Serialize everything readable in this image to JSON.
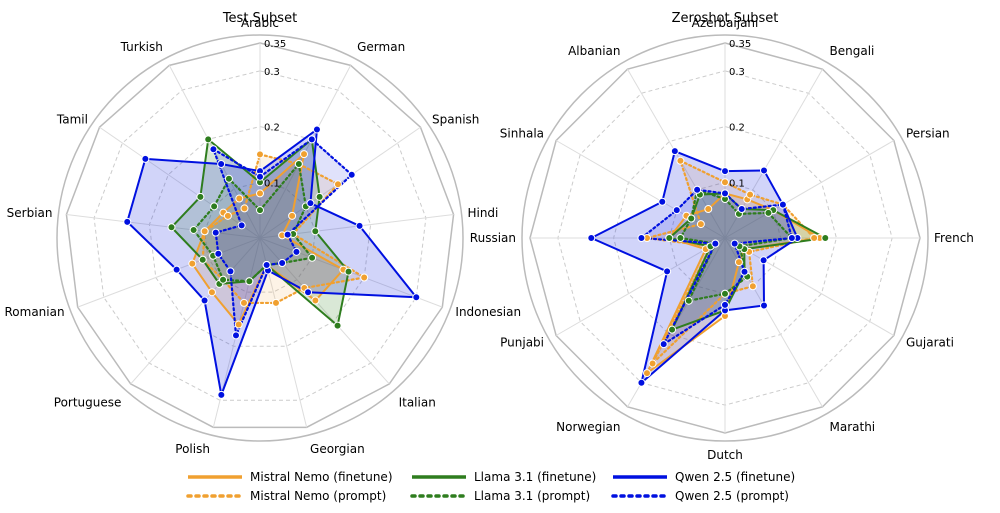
{
  "chart_data": [
    {
      "type": "radar",
      "title": "Test Subset",
      "categories": [
        "Arabic",
        "German",
        "Spanish",
        "Hindi",
        "Indonesian",
        "Italian",
        "Georgian",
        "Polish",
        "Portuguese",
        "Romanian",
        "Serbian",
        "Tamil",
        "Turkish"
      ],
      "rticks": [
        0.1,
        0.2,
        0.3,
        0.35
      ],
      "rtick_labels": [
        "0.1",
        "0.2",
        "0.3",
        "0.35"
      ],
      "rmax": 0.35,
      "grid": true,
      "series": [
        {
          "name": "Mistral Nemo (finetune)",
          "color": "#f0a030",
          "style": "solid",
          "values": [
            0.08,
            0.17,
            0.07,
            0.04,
            0.16,
            0.15,
            0.05,
            0.16,
            0.13,
            0.13,
            0.1,
            0.08,
            0.08
          ]
        },
        {
          "name": "Mistral Nemo (prompt)",
          "color": "#f0a030",
          "style": "dotted",
          "values": [
            0.15,
            0.15,
            0.17,
            0.06,
            0.2,
            0.12,
            0.12,
            0.12,
            0.1,
            0.11,
            0.1,
            0.07,
            0.06
          ]
        },
        {
          "name": "Llama 3.1 (finetune)",
          "color": "#2e7d1e",
          "style": "solid",
          "values": [
            0.1,
            0.2,
            0.13,
            0.1,
            0.17,
            0.21,
            0.05,
            0.08,
            0.11,
            0.11,
            0.16,
            0.13,
            0.2
          ]
        },
        {
          "name": "Llama 3.1 (prompt)",
          "color": "#2e7d1e",
          "style": "dotted",
          "values": [
            0.05,
            0.15,
            0.1,
            0.06,
            0.1,
            0.06,
            0.05,
            0.08,
            0.1,
            0.09,
            0.12,
            0.1,
            0.12
          ]
        },
        {
          "name": "Qwen 2.5 (finetune)",
          "color": "#0010e0",
          "style": "solid",
          "values": [
            0.12,
            0.22,
            0.11,
            0.18,
            0.3,
            0.13,
            0.06,
            0.29,
            0.15,
            0.16,
            0.24,
            0.25,
            0.15
          ]
        },
        {
          "name": "Qwen 2.5 (prompt)",
          "color": "#0010e0",
          "style": "dotted",
          "values": [
            0.11,
            0.2,
            0.2,
            0.05,
            0.07,
            0.06,
            0.05,
            0.18,
            0.08,
            0.08,
            0.08,
            0.04,
            0.18
          ]
        }
      ]
    },
    {
      "type": "radar",
      "title": "Zeroshot Subset",
      "categories": [
        "Azerbaijani",
        "Bengali",
        "Persian",
        "French",
        "Gujarati",
        "Marathi",
        "Dutch",
        "Norwegian",
        "Punjabi",
        "Russian",
        "Sinhala",
        "Albanian"
      ],
      "rticks": [
        0.1,
        0.2,
        0.3,
        0.35
      ],
      "rtick_labels": [
        "0.1",
        "0.2",
        "0.3",
        "0.35"
      ],
      "rmax": 0.35,
      "grid": true,
      "series": [
        {
          "name": "Mistral Nemo (finetune)",
          "color": "#f0a030",
          "style": "solid",
          "values": [
            0.08,
            0.08,
            0.1,
            0.17,
            0.04,
            0.05,
            0.14,
            0.28,
            0.04,
            0.1,
            0.08,
            0.06
          ]
        },
        {
          "name": "Mistral Nemo (prompt)",
          "color": "#f0a030",
          "style": "dotted",
          "values": [
            0.1,
            0.09,
            0.12,
            0.16,
            0.05,
            0.1,
            0.1,
            0.26,
            0.03,
            0.14,
            0.05,
            0.16
          ]
        },
        {
          "name": "Llama 3.1 (finetune)",
          "color": "#2e7d1e",
          "style": "solid",
          "values": [
            0.08,
            0.06,
            0.1,
            0.18,
            0.04,
            0.07,
            0.13,
            0.19,
            0.03,
            0.1,
            0.07,
            0.09
          ]
        },
        {
          "name": "Llama 3.1 (prompt)",
          "color": "#2e7d1e",
          "style": "dotted",
          "values": [
            0.07,
            0.05,
            0.09,
            0.12,
            0.03,
            0.08,
            0.1,
            0.13,
            0.02,
            0.08,
            0.07,
            0.1
          ]
        },
        {
          "name": "Qwen 2.5 (finetune)",
          "color": "#0010e0",
          "style": "solid",
          "values": [
            0.12,
            0.14,
            0.12,
            0.13,
            0.08,
            0.14,
            0.13,
            0.3,
            0.12,
            0.24,
            0.13,
            0.18
          ]
        },
        {
          "name": "Qwen 2.5 (prompt)",
          "color": "#0010e0",
          "style": "dotted",
          "values": [
            0.08,
            0.06,
            0.12,
            0.12,
            0.02,
            0.07,
            0.12,
            0.22,
            0.02,
            0.15,
            0.1,
            0.1
          ]
        }
      ]
    }
  ],
  "legend": {
    "placement": "bottom-center",
    "items": [
      "Mistral Nemo (finetune)",
      "Mistral Nemo (prompt)",
      "Llama 3.1 (finetune)",
      "Llama 3.1 (prompt)",
      "Qwen 2.5 (finetune)",
      "Qwen 2.5 (prompt)"
    ]
  }
}
